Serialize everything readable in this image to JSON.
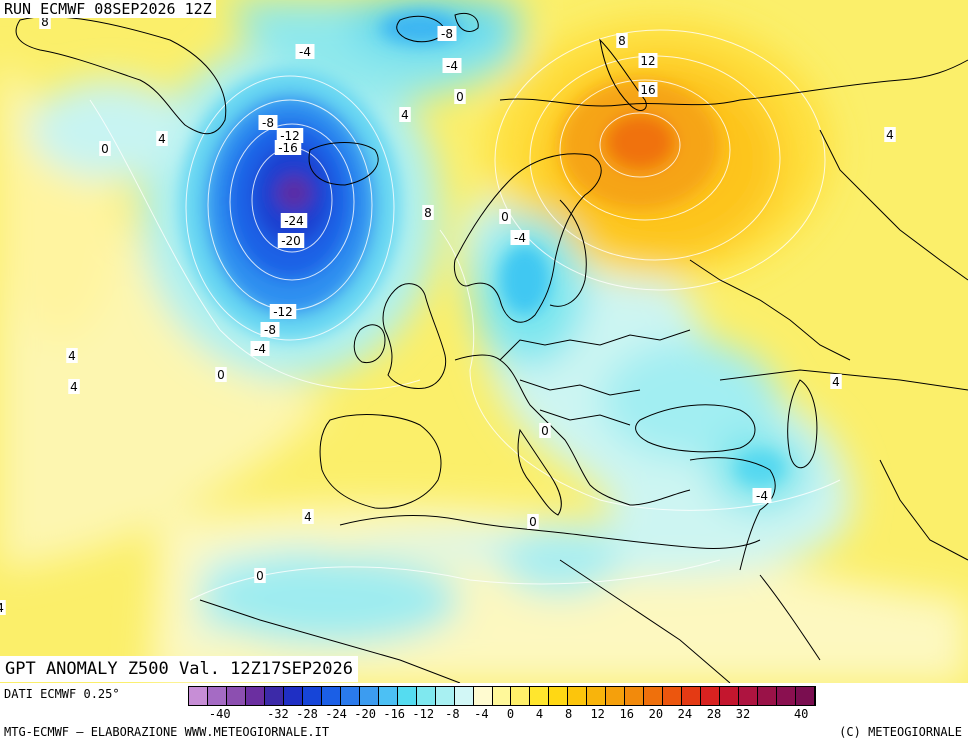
{
  "header": {
    "run": "RUN ECMWF 08SEP2026 12Z",
    "title": "GPT ANOMALY Z500 Val. 12Z17SEP2026"
  },
  "footer": {
    "dati": "DATI ECMWF 0.25°",
    "credit_left": "MTG-ECMWF – ELABORAZIONE WWW.METEOGIORNALE.IT",
    "credit_right": "(C) METEOGIORNALE"
  },
  "legend": {
    "ticks": [
      "-40",
      "-32",
      "-28",
      "-24",
      "-20",
      "-16",
      "-12",
      "-8",
      "-4",
      "0",
      "4",
      "8",
      "12",
      "16",
      "20",
      "24",
      "28",
      "32",
      "40"
    ],
    "colors": [
      "#c78ed6",
      "#a56bc4",
      "#8c4fb0",
      "#6b2fa0",
      "#3c2aa8",
      "#1f2fc4",
      "#1645d8",
      "#1b5fe6",
      "#2a7aec",
      "#3c9cf0",
      "#4cc0f4",
      "#55dcf0",
      "#7fe8ef",
      "#a8f0f2",
      "#d2f7f6",
      "#fffbd0",
      "#fff89a",
      "#fff06a",
      "#ffe62e",
      "#ffd814",
      "#fcc50c",
      "#f8b40c",
      "#f5a00c",
      "#f28a0c",
      "#ef700c",
      "#ec560e",
      "#e43a14",
      "#d82220",
      "#c4162e",
      "#ae1440",
      "#9a1248",
      "#8a1050",
      "#7a0e50"
    ]
  },
  "contour_labels": [
    {
      "t": "8"
    },
    {
      "t": "-4"
    },
    {
      "t": "-8"
    },
    {
      "t": "-4"
    },
    {
      "t": "0"
    },
    {
      "t": "4"
    },
    {
      "t": "0"
    },
    {
      "t": "4"
    },
    {
      "t": "-8"
    },
    {
      "t": "-12"
    },
    {
      "t": "-16"
    },
    {
      "t": "-24"
    },
    {
      "t": "-20"
    },
    {
      "t": "8"
    },
    {
      "t": "0"
    },
    {
      "t": "-4"
    },
    {
      "t": "-12"
    },
    {
      "t": "-8"
    },
    {
      "t": "-4"
    },
    {
      "t": "4"
    },
    {
      "t": "4"
    },
    {
      "t": "0"
    },
    {
      "t": "8"
    },
    {
      "t": "12"
    },
    {
      "t": "16"
    },
    {
      "t": "4"
    },
    {
      "t": "4"
    },
    {
      "t": "0"
    },
    {
      "t": "-4"
    },
    {
      "t": "4"
    },
    {
      "t": "0"
    },
    {
      "t": "0"
    },
    {
      "t": "4"
    }
  ]
}
